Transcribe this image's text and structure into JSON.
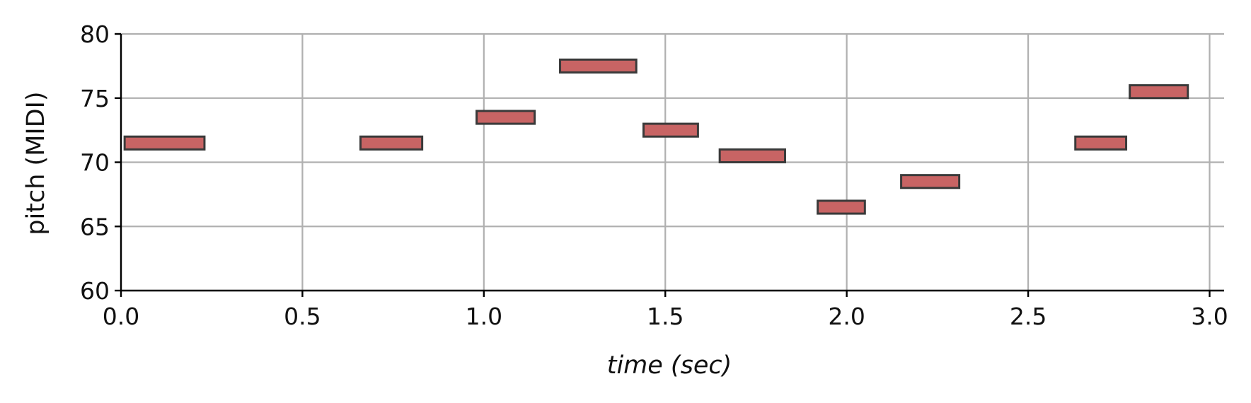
{
  "chart_data": {
    "type": "piano-roll",
    "xlabel": "time (sec)",
    "ylabel": "pitch (MIDI)",
    "xlim": [
      0.0,
      3.04
    ],
    "ylim": [
      60,
      80
    ],
    "xticks": [
      0.0,
      0.5,
      1.0,
      1.5,
      2.0,
      2.5,
      3.0
    ],
    "xtick_labels": [
      "0.0",
      "0.5",
      "1.0",
      "1.5",
      "2.0",
      "2.5",
      "3.0"
    ],
    "yticks": [
      60,
      65,
      70,
      75,
      80
    ],
    "ytick_labels": [
      "60",
      "65",
      "70",
      "75",
      "80"
    ],
    "grid": true,
    "note_fill": "#c86464",
    "note_edge": "#3a3a3a",
    "grid_color": "#b0b0b0",
    "notes": [
      {
        "start": 0.01,
        "end": 0.23,
        "pitch": 71
      },
      {
        "start": 0.66,
        "end": 0.83,
        "pitch": 71
      },
      {
        "start": 0.98,
        "end": 1.14,
        "pitch": 73
      },
      {
        "start": 1.21,
        "end": 1.42,
        "pitch": 77
      },
      {
        "start": 1.44,
        "end": 1.59,
        "pitch": 72
      },
      {
        "start": 1.65,
        "end": 1.83,
        "pitch": 70
      },
      {
        "start": 1.92,
        "end": 2.05,
        "pitch": 66
      },
      {
        "start": 2.15,
        "end": 2.31,
        "pitch": 68
      },
      {
        "start": 2.63,
        "end": 2.77,
        "pitch": 71
      },
      {
        "start": 2.78,
        "end": 2.94,
        "pitch": 75
      }
    ]
  }
}
